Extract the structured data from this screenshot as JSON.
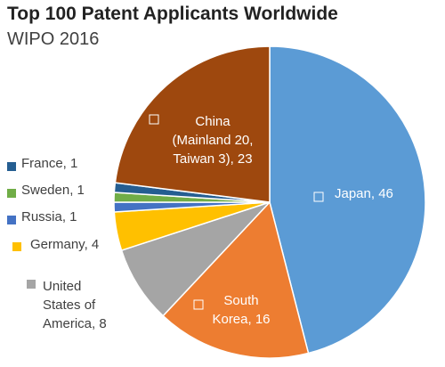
{
  "chart_data": {
    "type": "pie",
    "title": "Top 100 Patent Applicants Worldwide",
    "subtitle": "WIPO 2016",
    "total": 100,
    "slices": [
      {
        "name": "Japan",
        "value": 46,
        "color": "#5b9bd5",
        "label": [
          "Japan, 46"
        ]
      },
      {
        "name": "South Korea",
        "value": 16,
        "color": "#ed7d31",
        "label": [
          "South",
          "Korea, 16"
        ]
      },
      {
        "name": "United States of America",
        "value": 8,
        "color": "#a5a5a5",
        "label": [
          "United",
          "States of",
          "America, 8"
        ]
      },
      {
        "name": "Germany",
        "value": 4,
        "color": "#ffc000",
        "label": [
          "Germany, 4"
        ]
      },
      {
        "name": "Russia",
        "value": 1,
        "color": "#4472c4",
        "label": [
          "Russia, 1"
        ]
      },
      {
        "name": "Sweden",
        "value": 1,
        "color": "#70ad47",
        "label": [
          "Sweden, 1"
        ]
      },
      {
        "name": "France",
        "value": 1,
        "color": "#255e91",
        "label": [
          "France, 1"
        ]
      },
      {
        "name": "China",
        "value": 23,
        "color": "#9e480e",
        "label": [
          "China",
          "(Mainland 20,",
          "Taiwan 3), 23"
        ]
      }
    ]
  }
}
